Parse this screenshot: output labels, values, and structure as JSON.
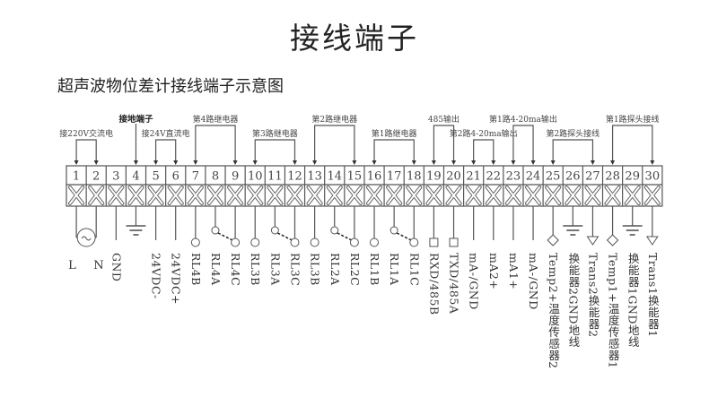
{
  "title": "接线端子",
  "subtitle": "超声波物位差计接线端子示意图",
  "groups": [
    {
      "label": "接220V交流电",
      "terminals": [
        1,
        2
      ],
      "level": "low"
    },
    {
      "label": "接地端子",
      "terminals": [
        4
      ],
      "level": "high",
      "bold": true
    },
    {
      "label": "接24V直流电",
      "terminals": [
        5,
        6
      ],
      "level": "low"
    },
    {
      "label": "第4路继电器",
      "terminals": [
        7,
        9
      ],
      "level": "high"
    },
    {
      "label": "第3路继电器",
      "terminals": [
        10,
        12
      ],
      "level": "low"
    },
    {
      "label": "第2路继电器",
      "terminals": [
        13,
        15
      ],
      "level": "high"
    },
    {
      "label": "第1路继电器",
      "terminals": [
        16,
        18
      ],
      "level": "low"
    },
    {
      "label": "485输出",
      "terminals": [
        19,
        20
      ],
      "level": "high"
    },
    {
      "label": "第2路4-20ma输出",
      "terminals": [
        21,
        22
      ],
      "level": "low"
    },
    {
      "label": "第1路4-20ma输出",
      "terminals": [
        23,
        24
      ],
      "level": "high"
    },
    {
      "label": "第2路探头接线",
      "terminals": [
        25,
        27
      ],
      "level": "low"
    },
    {
      "label": "第1路探头接线",
      "terminals": [
        28,
        30
      ],
      "level": "high"
    }
  ],
  "terminals": [
    {
      "num": "1",
      "label": "L",
      "symbol": "ac"
    },
    {
      "num": "2",
      "label": "N",
      "symbol": "ac"
    },
    {
      "num": "3",
      "label": "GND",
      "symbol": "line"
    },
    {
      "num": "4",
      "label": "",
      "symbol": "ground"
    },
    {
      "num": "5",
      "label": "24VDC-",
      "symbol": "line"
    },
    {
      "num": "6",
      "label": "24VDC+",
      "symbol": "line"
    },
    {
      "num": "7",
      "label": "RL4B",
      "symbol": "circle"
    },
    {
      "num": "8",
      "label": "RL4A",
      "symbol": "switch"
    },
    {
      "num": "9",
      "label": "RL4C",
      "symbol": "circle"
    },
    {
      "num": "10",
      "label": "RL3B",
      "symbol": "circle"
    },
    {
      "num": "11",
      "label": "RL3A",
      "symbol": "switch"
    },
    {
      "num": "12",
      "label": "RL3C",
      "symbol": "circle"
    },
    {
      "num": "13",
      "label": "RL3B",
      "symbol": "circle"
    },
    {
      "num": "14",
      "label": "RL2A",
      "symbol": "switch"
    },
    {
      "num": "15",
      "label": "RL2C",
      "symbol": "circle"
    },
    {
      "num": "16",
      "label": "RL1B",
      "symbol": "circle"
    },
    {
      "num": "17",
      "label": "RL1A",
      "symbol": "switch"
    },
    {
      "num": "18",
      "label": "RL1C",
      "symbol": "circle"
    },
    {
      "num": "19",
      "label": "RXD/485B",
      "symbol": "square"
    },
    {
      "num": "20",
      "label": "TXD/485A",
      "symbol": "square"
    },
    {
      "num": "21",
      "label": "mA-/GND",
      "symbol": "line"
    },
    {
      "num": "22",
      "label": "mA2+",
      "symbol": "line"
    },
    {
      "num": "23",
      "label": "mA1+",
      "symbol": "line"
    },
    {
      "num": "24",
      "label": "mA-/GND",
      "symbol": "line"
    },
    {
      "num": "25",
      "label": "Temp2+温度传感器2",
      "symbol": "diamond"
    },
    {
      "num": "26",
      "label": "换能器2GND地线",
      "symbol": "ground"
    },
    {
      "num": "27",
      "label": "Trans2换能器2",
      "symbol": "triangle"
    },
    {
      "num": "28",
      "label": "Temp1+温度传感器1",
      "symbol": "diamond"
    },
    {
      "num": "29",
      "label": "换能器1GND地线",
      "symbol": "ground"
    },
    {
      "num": "30",
      "label": "Trans1换能器1",
      "symbol": "triangle"
    }
  ],
  "colors": {
    "line": "#555555",
    "text": "#333333"
  }
}
